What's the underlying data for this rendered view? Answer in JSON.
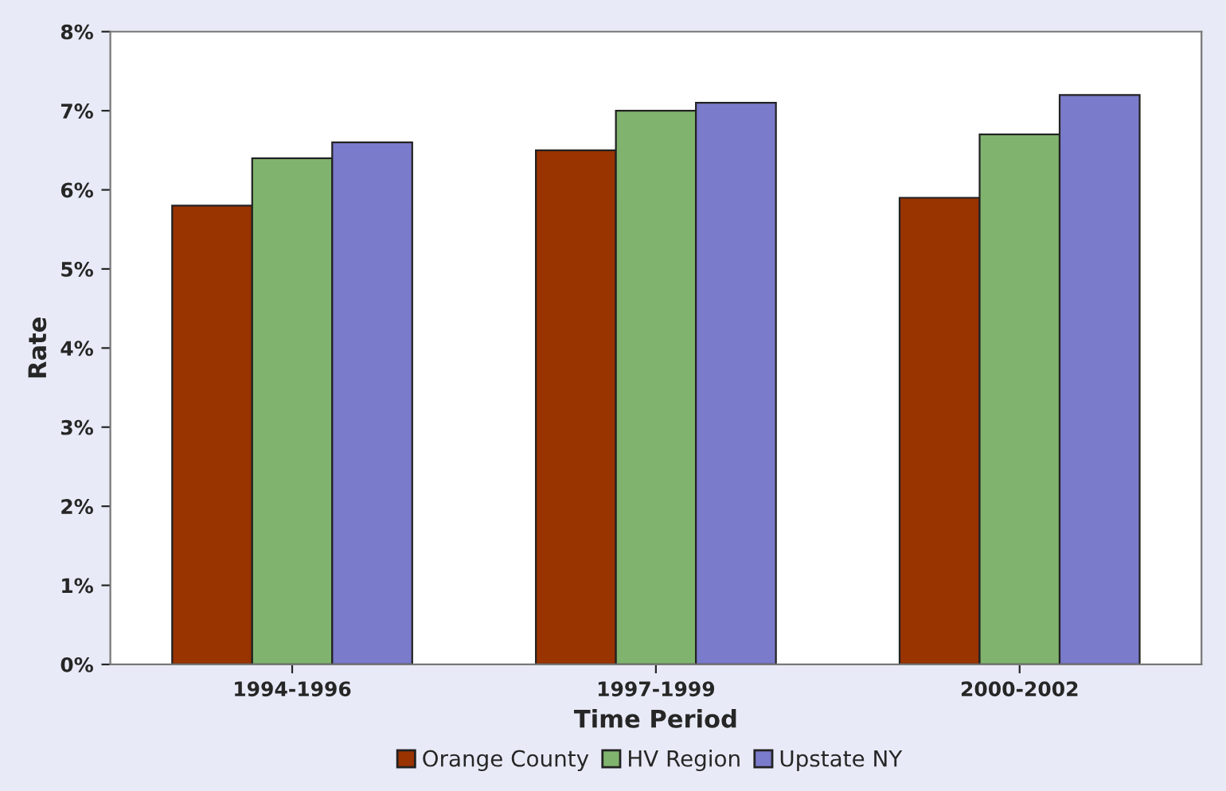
{
  "chart_data": {
    "type": "bar",
    "xlabel": "Time Period",
    "ylabel": "Rate",
    "categories": [
      "1994-1996",
      "1997-1999",
      "2000-2002"
    ],
    "series": [
      {
        "name": "Orange County",
        "color": "#993300",
        "values": [
          5.8,
          6.5,
          5.9
        ]
      },
      {
        "name": "HV Region",
        "color": "#80b46e",
        "values": [
          6.4,
          7.0,
          6.7
        ]
      },
      {
        "name": "Upstate NY",
        "color": "#7b7bcc",
        "values": [
          6.6,
          7.1,
          7.2
        ]
      }
    ],
    "ylim": [
      0,
      8
    ],
    "yticks": [
      {
        "value": 0,
        "label": "0%"
      },
      {
        "value": 1,
        "label": "1%"
      },
      {
        "value": 2,
        "label": "2%"
      },
      {
        "value": 3,
        "label": "3%"
      },
      {
        "value": 4,
        "label": "4%"
      },
      {
        "value": 5,
        "label": "5%"
      },
      {
        "value": 6,
        "label": "6%"
      },
      {
        "value": 7,
        "label": "7%"
      },
      {
        "value": 8,
        "label": "8%"
      }
    ],
    "grid": false,
    "legend": "bottom"
  }
}
